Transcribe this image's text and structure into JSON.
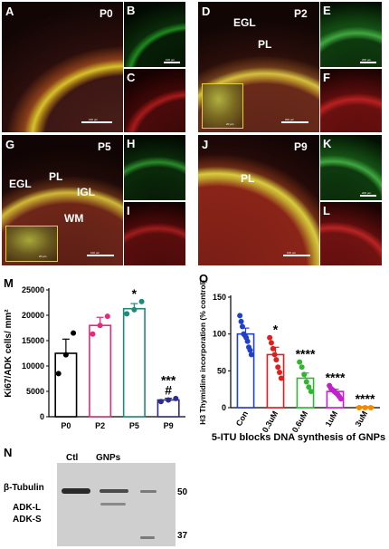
{
  "micro": {
    "A": {
      "letter": "A",
      "stage": "P0",
      "scale": "100 µm"
    },
    "B": {
      "letter": "B",
      "scale": "100 µm"
    },
    "C": {
      "letter": "C"
    },
    "D": {
      "letter": "D",
      "stage": "P2",
      "egl": "EGL",
      "pl": "PL",
      "scale": "200 µm",
      "inset_scale": "20 µm"
    },
    "E": {
      "letter": "E",
      "scale": "200 µm"
    },
    "F": {
      "letter": "F"
    },
    "G": {
      "letter": "G",
      "stage": "P5",
      "egl": "EGL",
      "pl": "PL",
      "igl": "IGL",
      "wm": "WM",
      "scale": "100 µm",
      "inset_scale": "20 µm"
    },
    "H": {
      "letter": "H"
    },
    "I": {
      "letter": "I"
    },
    "J": {
      "letter": "J",
      "stage": "P9",
      "pl": "PL",
      "scale": "100 µm"
    },
    "K": {
      "letter": "K",
      "scale": "200 µm"
    },
    "L": {
      "letter": "L"
    }
  },
  "panel_m": {
    "letter": "M"
  },
  "panel_o": {
    "letter": "O"
  },
  "panel_n": {
    "letter": "N",
    "lane_ctl": "Ctl",
    "lane_gnps": "GNPs",
    "band_tubulin": "β-Tubulin",
    "band_adkl": "ADK-L",
    "band_adks": "ADK-S",
    "marker_50": "50",
    "marker_37": "37"
  },
  "chart_data": [
    {
      "type": "bar",
      "panel": "M",
      "categories": [
        "P0",
        "P2",
        "P5",
        "P9"
      ],
      "values": [
        12500,
        18000,
        21300,
        3300
      ],
      "errors": [
        2800,
        1600,
        1000,
        350
      ],
      "points": [
        [
          8500,
          12200,
          16500
        ],
        [
          16300,
          18000,
          19800
        ],
        [
          20300,
          21100,
          22700
        ],
        [
          3000,
          3300,
          3600
        ]
      ],
      "ylabel": "Ki67/ADK cells/ mm²",
      "ylim": [
        0,
        25000
      ],
      "yticks": [
        0,
        5000,
        10000,
        15000,
        20000,
        25000
      ],
      "ytick_labels": [
        "0",
        "5000",
        "10000",
        "15000",
        "20000",
        "25000"
      ],
      "annotations": [
        {
          "category": "P5",
          "text": "*"
        },
        {
          "category": "P9",
          "text": "***"
        },
        {
          "category": "P9",
          "text": "#"
        }
      ],
      "colors": [
        "#000000",
        "#e6297a",
        "#1f8a7a",
        "#2e2a8f"
      ]
    },
    {
      "type": "bar",
      "panel": "O",
      "categories": [
        "Con",
        "0.3uM",
        "0.6uM",
        "1uM",
        "3uM"
      ],
      "values": [
        100,
        72,
        40,
        22,
        0
      ],
      "errors": [
        8,
        10,
        7,
        3,
        1
      ],
      "points": [
        [
          125,
          117,
          110,
          100,
          98,
          95,
          90,
          82,
          78,
          72
        ],
        [
          95,
          88,
          80,
          72,
          65,
          55,
          48,
          40
        ],
        [
          62,
          55,
          45,
          35,
          28,
          22
        ],
        [
          30,
          26,
          24,
          22,
          20,
          18,
          15,
          12
        ],
        [
          0,
          0,
          0
        ]
      ],
      "ylabel": "H3 Thymidine incorporation (% control)",
      "xlabel": "5-ITU blocks DNA synthesis of GNPs",
      "ylim": [
        0,
        150
      ],
      "yticks": [
        0,
        50,
        100,
        150
      ],
      "ytick_labels": [
        "0",
        "50",
        "100",
        "150"
      ],
      "annotations": [
        {
          "category": "0.3uM",
          "text": "*"
        },
        {
          "category": "0.6uM",
          "text": "****"
        },
        {
          "category": "1uM",
          "text": "****"
        },
        {
          "category": "3uM",
          "text": "****"
        }
      ],
      "colors": [
        "#1f3fcf",
        "#e11d1d",
        "#2fb82f",
        "#c21fcf",
        "#f08a00"
      ]
    }
  ]
}
